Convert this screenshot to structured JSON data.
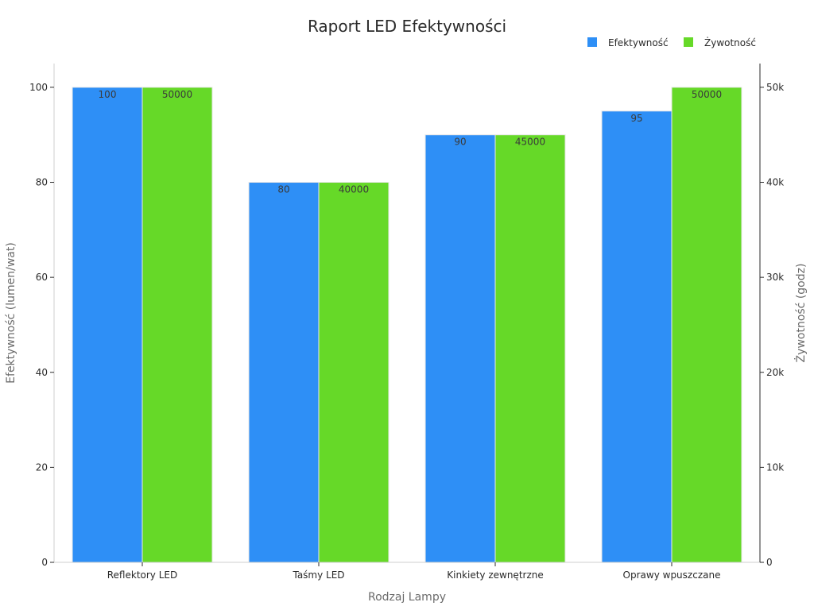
{
  "chart_data": {
    "type": "bar",
    "title": "Raport LED Efektywności",
    "categories": [
      "Reflektory LED",
      "Taśmy LED",
      "Kinkiety zewnętrzne",
      "Oprawy wpuszczane"
    ],
    "series": [
      {
        "name": "Efektywność",
        "axis": "left",
        "color": "#2e8ff6",
        "values": [
          100,
          80,
          90,
          95
        ],
        "labels": [
          "100",
          "80",
          "90",
          "95"
        ]
      },
      {
        "name": "Żywotność",
        "axis": "right",
        "color": "#66d928",
        "values": [
          50000,
          40000,
          45000,
          50000
        ],
        "labels": [
          "50000",
          "40000",
          "45000",
          "50000"
        ]
      }
    ],
    "xlabel": "Rodzaj Lampy",
    "ylabel": "Efektywność (lumen/wat)",
    "y2label": "Żywotność (godz)",
    "ylim": [
      0,
      105
    ],
    "y2lim": [
      0,
      52500
    ],
    "yticks": [
      0,
      20,
      40,
      60,
      80,
      100
    ],
    "y2ticks": [
      0,
      10000,
      20000,
      30000,
      40000,
      50000
    ],
    "y2ticklabels": [
      "0",
      "10k",
      "20k",
      "30k",
      "40k",
      "50k"
    ],
    "legend_position": "top-right",
    "grid": false
  }
}
